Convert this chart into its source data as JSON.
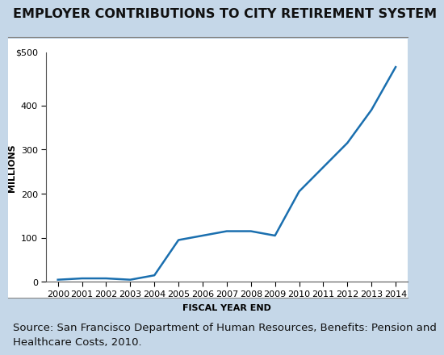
{
  "title": "EMPLOYER CONTRIBUTIONS TO CITY RETIREMENT SYSTEM",
  "xlabel": "FISCAL YEAR END",
  "ylabel": "MILLIONS",
  "years": [
    2000,
    2001,
    2002,
    2003,
    2004,
    2005,
    2006,
    2007,
    2008,
    2009,
    2010,
    2011,
    2012,
    2013,
    2014
  ],
  "values": [
    5,
    8,
    8,
    5,
    15,
    95,
    105,
    115,
    115,
    105,
    205,
    260,
    315,
    390,
    487
  ],
  "line_color": "#1a6faf",
  "line_width": 1.8,
  "ylim": [
    0,
    520
  ],
  "yticks": [
    0,
    100,
    200,
    300,
    400
  ],
  "ytick_top_label": "$500",
  "ytick_labels": [
    "0",
    "100",
    "200",
    "300",
    "400"
  ],
  "background_outer": "#c5d7e8",
  "background_inner": "#ffffff",
  "title_fontsize": 11.5,
  "axis_label_fontsize": 8,
  "tick_label_fontsize": 8,
  "source_text": "Source: San Francisco Department of Human Resources, Benefits: Pension and\nHealthcare Costs, 2010.",
  "source_fontsize": 9.5
}
